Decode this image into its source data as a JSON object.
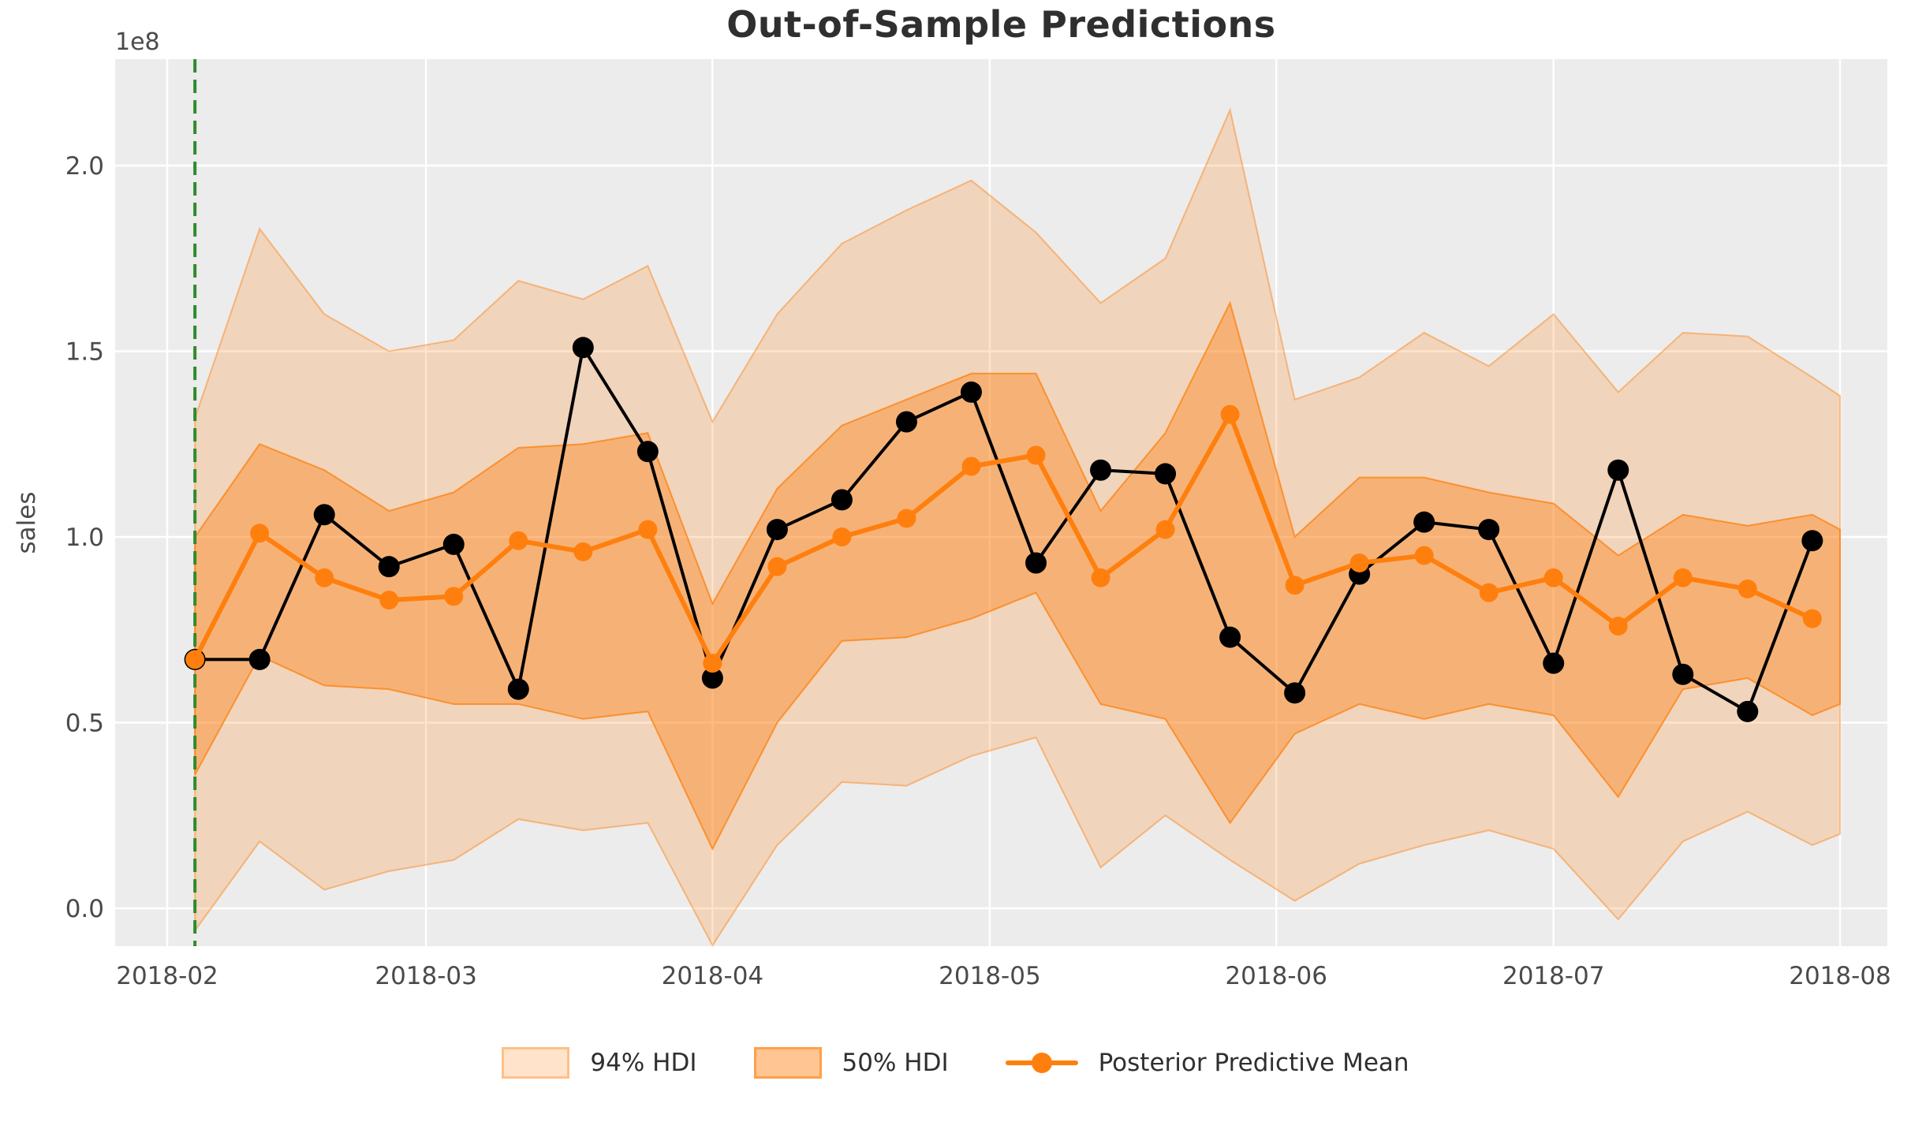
{
  "title": "Out-of-Sample Predictions",
  "ylabel": "sales",
  "offset_text": "1e8",
  "legend": {
    "items": [
      {
        "label": "94% HDI",
        "swatch": "band-light"
      },
      {
        "label": "50% HDI",
        "swatch": "band-mid"
      },
      {
        "label": "Posterior Predictive Mean",
        "swatch": "line-marker"
      }
    ]
  },
  "chart_data": {
    "type": "line",
    "title": "Out-of-Sample Predictions",
    "xlabel": "",
    "ylabel": "sales",
    "y_offset_multiplier": "1e8",
    "ylim": [
      -0.102,
      2.286
    ],
    "grid": true,
    "legend_position": "bottom-center",
    "x": [
      "2018-02-04",
      "2018-02-11",
      "2018-02-18",
      "2018-02-25",
      "2018-03-04",
      "2018-03-11",
      "2018-03-18",
      "2018-03-25",
      "2018-04-01",
      "2018-04-08",
      "2018-04-15",
      "2018-04-22",
      "2018-04-29",
      "2018-05-06",
      "2018-05-13",
      "2018-05-20",
      "2018-05-27",
      "2018-06-03",
      "2018-06-10",
      "2018-06-17",
      "2018-06-24",
      "2018-07-01",
      "2018-07-08",
      "2018-07-15",
      "2018-07-22",
      "2018-07-29"
    ],
    "band_x": [
      "2018-02-04",
      "2018-02-11",
      "2018-02-18",
      "2018-02-25",
      "2018-03-04",
      "2018-03-11",
      "2018-03-18",
      "2018-03-25",
      "2018-04-01",
      "2018-04-08",
      "2018-04-15",
      "2018-04-22",
      "2018-04-29",
      "2018-05-06",
      "2018-05-13",
      "2018-05-20",
      "2018-05-27",
      "2018-06-03",
      "2018-06-10",
      "2018-06-17",
      "2018-06-24",
      "2018-07-01",
      "2018-07-08",
      "2018-07-15",
      "2018-07-22",
      "2018-07-29",
      "2018-08-01"
    ],
    "series": [
      {
        "name": "94% HDI",
        "kind": "band",
        "hi": [
          1.32,
          1.83,
          1.6,
          1.5,
          1.53,
          1.69,
          1.64,
          1.73,
          1.31,
          1.6,
          1.79,
          1.88,
          1.96,
          1.82,
          1.63,
          1.75,
          2.15,
          1.37,
          1.43,
          1.55,
          1.46,
          1.6,
          1.39,
          1.55,
          1.54,
          1.43,
          1.38
        ],
        "lo": [
          -0.06,
          0.18,
          0.05,
          0.1,
          0.13,
          0.24,
          0.21,
          0.23,
          -0.1,
          0.17,
          0.34,
          0.33,
          0.41,
          0.46,
          0.11,
          0.25,
          0.13,
          0.02,
          0.12,
          0.17,
          0.21,
          0.16,
          -0.03,
          0.18,
          0.26,
          0.17,
          0.2
        ],
        "color": "#ff7f0e",
        "fill_alpha": 0.22,
        "edge_alpha": 0.45
      },
      {
        "name": "50% HDI",
        "kind": "band",
        "hi": [
          1.0,
          1.25,
          1.18,
          1.07,
          1.12,
          1.24,
          1.25,
          1.28,
          0.82,
          1.13,
          1.3,
          1.37,
          1.44,
          1.44,
          1.07,
          1.28,
          1.63,
          1.0,
          1.16,
          1.16,
          1.12,
          1.09,
          0.95,
          1.06,
          1.03,
          1.06,
          1.02
        ],
        "lo": [
          0.36,
          0.68,
          0.6,
          0.59,
          0.55,
          0.55,
          0.51,
          0.53,
          0.16,
          0.5,
          0.72,
          0.73,
          0.78,
          0.85,
          0.55,
          0.51,
          0.23,
          0.47,
          0.55,
          0.51,
          0.55,
          0.52,
          0.3,
          0.59,
          0.62,
          0.52,
          0.55
        ],
        "color": "#ff7f0e",
        "fill_alpha": 0.4,
        "edge_alpha": 0.75
      },
      {
        "name": "observed-sales",
        "kind": "line",
        "values": [
          0.67,
          0.67,
          1.06,
          0.92,
          0.98,
          0.59,
          1.51,
          1.23,
          0.62,
          1.02,
          1.1,
          1.31,
          1.39,
          0.93,
          1.18,
          1.17,
          0.73,
          0.58,
          0.9,
          1.04,
          1.02,
          0.66,
          1.18,
          0.63,
          0.53,
          0.99
        ],
        "color": "#000000",
        "line_width": 4,
        "marker_radius": 13.5
      },
      {
        "name": "Posterior Predictive Mean",
        "kind": "line",
        "values": [
          0.67,
          1.01,
          0.89,
          0.83,
          0.84,
          0.99,
          0.96,
          1.02,
          0.66,
          0.92,
          1.0,
          1.05,
          1.19,
          1.22,
          0.89,
          1.02,
          1.33,
          0.87,
          0.93,
          0.95,
          0.85,
          0.89,
          0.76,
          0.89,
          0.86,
          0.78
        ],
        "color": "#ff7f0e",
        "line_width": 6,
        "marker_radius": 12
      }
    ],
    "split_line": {
      "date": "2018-02-04",
      "color": "#2e8b2e",
      "style": "dashed",
      "width": 4
    },
    "xticks": [
      {
        "date": "2018-02-01",
        "label": "2018-02"
      },
      {
        "date": "2018-03-01",
        "label": "2018-03"
      },
      {
        "date": "2018-04-01",
        "label": "2018-04"
      },
      {
        "date": "2018-05-01",
        "label": "2018-05"
      },
      {
        "date": "2018-06-01",
        "label": "2018-06"
      },
      {
        "date": "2018-07-01",
        "label": "2018-07"
      },
      {
        "date": "2018-08-01",
        "label": "2018-08"
      }
    ],
    "yticks": [
      {
        "v": 0.0,
        "label": "0.0"
      },
      {
        "v": 0.5,
        "label": "0.5"
      },
      {
        "v": 1.0,
        "label": "1.0"
      },
      {
        "v": 1.5,
        "label": "1.5"
      },
      {
        "v": 2.0,
        "label": "2.0"
      }
    ],
    "style": {
      "plot_bg": "#ececec",
      "gridline_color": "#ffffff",
      "tick_label_color": "#4a4a4a",
      "title_color": "#2f2f2f",
      "accent_orange": "#ff7f0e",
      "observed_black": "#000000",
      "split_green": "#2e8b2e"
    }
  }
}
